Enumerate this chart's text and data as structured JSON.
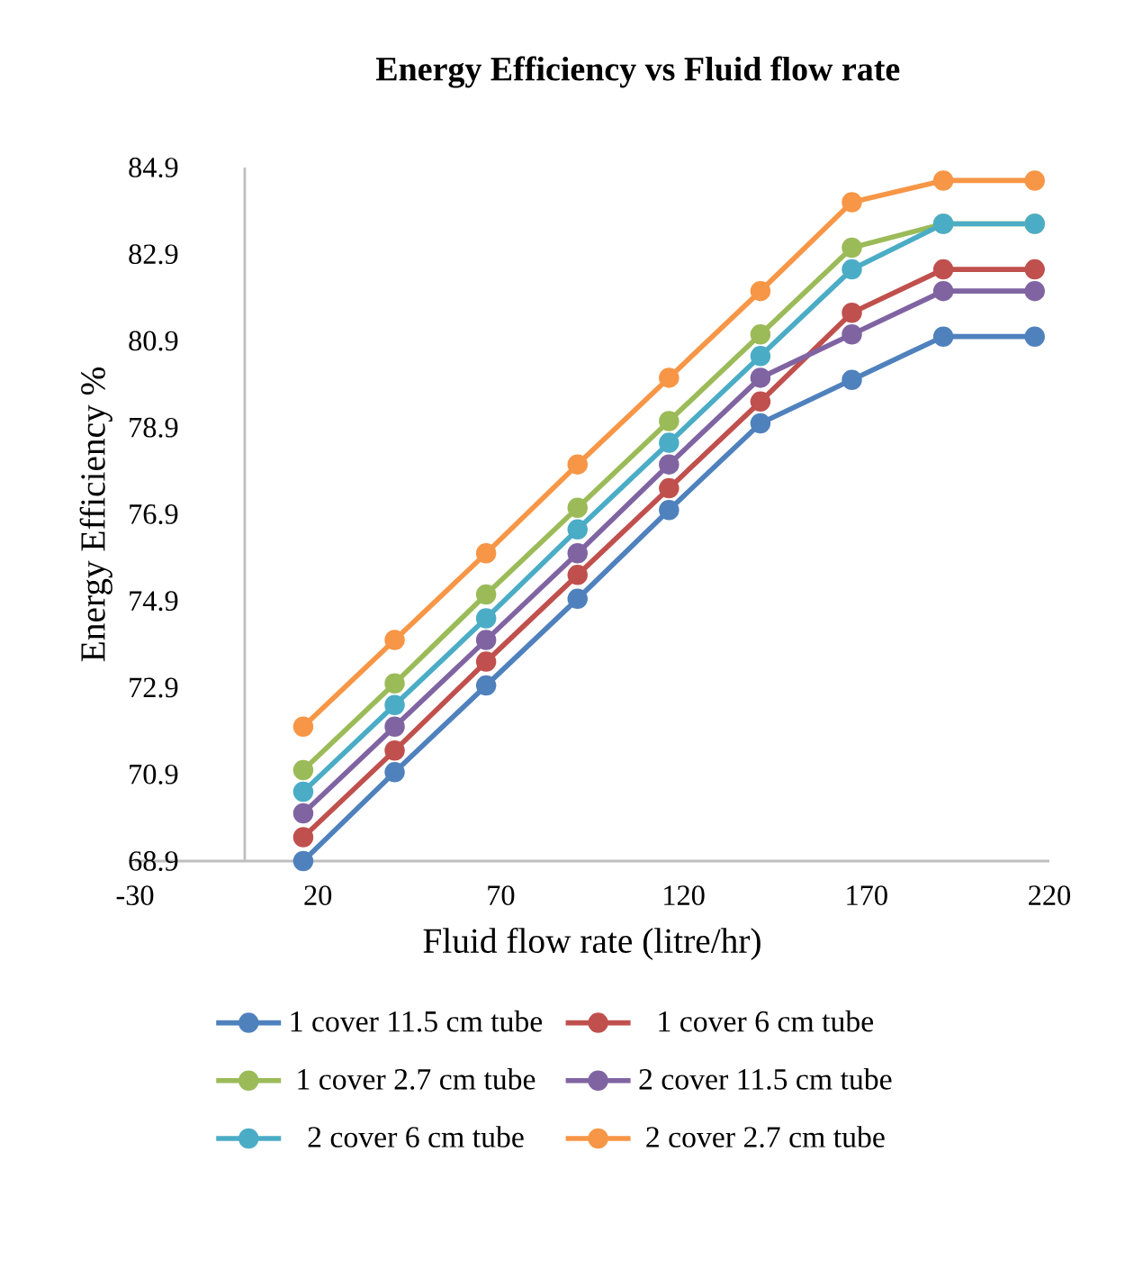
{
  "chart_data": {
    "type": "line",
    "title": "Energy Efficiency vs Fluid flow rate",
    "xlabel": "Fluid flow rate (litre/hr)",
    "ylabel": "Energy Efficiency %",
    "x": [
      16,
      41,
      66,
      91,
      116,
      141,
      166,
      191,
      216
    ],
    "series": [
      {
        "name": "1 cover 11.5 cm tube",
        "color": "#4f81bd",
        "values": [
          68.9,
          70.95,
          72.95,
          74.95,
          77.0,
          79.0,
          80.0,
          81.0,
          81.0
        ]
      },
      {
        "name": "1 cover 6 cm tube",
        "color": "#c0504d",
        "values": [
          69.45,
          71.45,
          73.5,
          75.5,
          77.5,
          79.5,
          81.55,
          82.55,
          82.55
        ]
      },
      {
        "name": "1 cover 2.7 cm tube",
        "color": "#9bbb59",
        "values": [
          71.0,
          73.0,
          75.05,
          77.05,
          79.05,
          81.05,
          83.05,
          83.6,
          83.6
        ]
      },
      {
        "name": "2 cover 11.5 cm tube",
        "color": "#8064a2",
        "values": [
          70.0,
          72.0,
          74.0,
          76.0,
          78.05,
          80.05,
          81.05,
          82.05,
          82.05
        ]
      },
      {
        "name": "2 cover 6 cm tube",
        "color": "#4bacc6",
        "values": [
          70.5,
          72.5,
          74.5,
          76.55,
          78.55,
          80.55,
          82.55,
          83.6,
          83.6
        ]
      },
      {
        "name": "2 cover 2.7 cm tube",
        "color": "#f79646",
        "values": [
          72.0,
          74.0,
          76.0,
          78.05,
          80.05,
          82.05,
          84.1,
          84.6,
          84.6
        ]
      }
    ],
    "xlim": [
      -30,
      220
    ],
    "xticks": [
      -30,
      20,
      70,
      120,
      170,
      220
    ],
    "ylim": [
      68.9,
      84.9
    ],
    "yticks": [
      68.9,
      70.9,
      72.9,
      74.9,
      76.9,
      78.9,
      80.9,
      82.9,
      84.9
    ],
    "grid": false,
    "legend": "bottom",
    "marker": "circle",
    "line_style": "solid"
  }
}
